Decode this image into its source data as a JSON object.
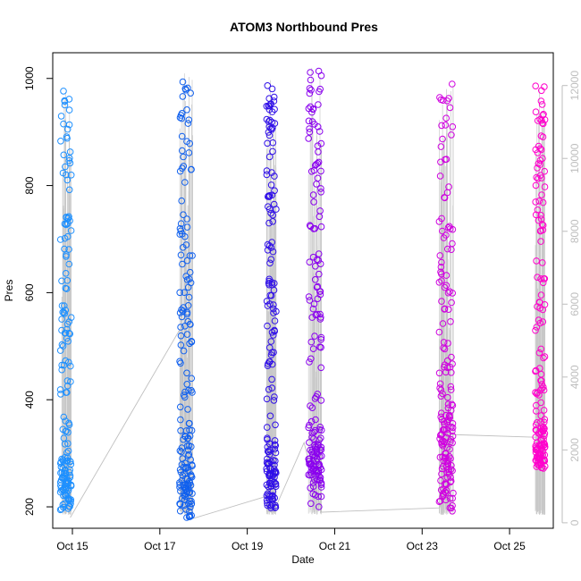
{
  "chart_data": {
    "type": "scatter",
    "title": "ATOM3 Northbound Pres",
    "xlabel": "Date",
    "ylabel": "Pres",
    "x_ticks": [
      "Oct 15",
      "Oct 17",
      "Oct 19",
      "Oct 21",
      "Oct 23",
      "Oct 25"
    ],
    "x_tick_days": [
      15,
      17,
      19,
      21,
      23,
      25
    ],
    "xlim": [
      14.55,
      26.0
    ],
    "ylim": [
      160,
      1048
    ],
    "y_ticks": [
      200,
      400,
      600,
      800,
      1000
    ],
    "y2_ticks": [
      0,
      2000,
      4000,
      6000,
      8000,
      10000,
      12000
    ],
    "y2lim": [
      -150,
      12900
    ],
    "y2_color": "#bebebe",
    "marker": "open-circle",
    "color_gradient": [
      "#1e90ff",
      "#0000ee",
      "#8a00ee",
      "#ff00cc"
    ],
    "grid": false,
    "legend": "none",
    "clusters": [
      {
        "day": 14.85,
        "width": 0.25,
        "ymin": 180,
        "ymax": 980,
        "lowDensity": 230,
        "color": "#1e90ff"
      },
      {
        "day": 17.6,
        "width": 0.3,
        "ymin": 175,
        "ymax": 1012,
        "lowDensity": 270,
        "color": "#1060ee"
      },
      {
        "day": 19.55,
        "width": 0.22,
        "ymin": 188,
        "ymax": 998,
        "lowDensity": 250,
        "color": "#3010e8"
      },
      {
        "day": 20.55,
        "width": 0.3,
        "ymin": 188,
        "ymax": 1020,
        "lowDensity": 300,
        "color": "#8a00ee"
      },
      {
        "day": 23.55,
        "width": 0.32,
        "ymin": 188,
        "ymax": 995,
        "lowDensity": 330,
        "color": "#d000e0"
      },
      {
        "day": 25.7,
        "width": 0.22,
        "ymin": 262,
        "ymax": 990,
        "lowDensity": 290,
        "color": "#ff00cc"
      }
    ],
    "connector_path": [
      {
        "day": 14.95,
        "y": 180
      },
      {
        "day": 17.45,
        "y": 530
      },
      {
        "day": 17.75,
        "y": 178
      },
      {
        "day": 19.45,
        "y": 220
      },
      {
        "day": 19.6,
        "y": 190
      },
      {
        "day": 20.3,
        "y": 320
      },
      {
        "day": 20.7,
        "y": 190
      },
      {
        "day": 23.4,
        "y": 198
      },
      {
        "day": 23.7,
        "y": 335
      },
      {
        "day": 25.6,
        "y": 330
      }
    ]
  }
}
